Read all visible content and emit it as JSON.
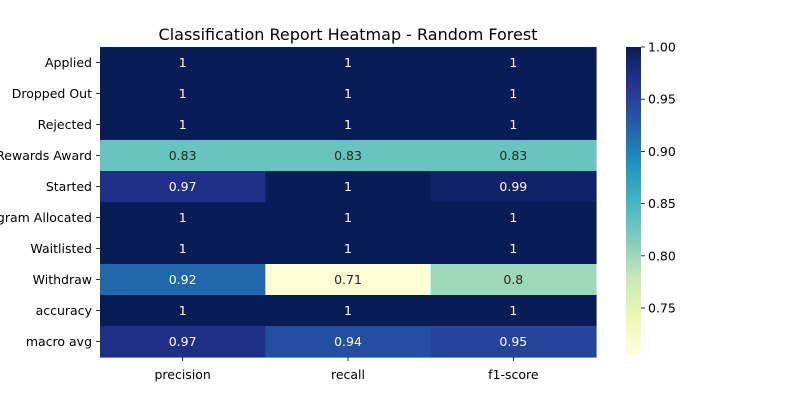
{
  "chart_data": {
    "type": "heatmap",
    "title": "Classification Report Heatmap - Random Forest",
    "rows": [
      "Applied",
      "Dropped Out",
      "Rejected",
      "Rewards Award",
      "Started",
      "Program Allocated",
      "Waitlisted",
      "Withdraw",
      "accuracy",
      "macro avg"
    ],
    "columns": [
      "precision",
      "recall",
      "f1-score"
    ],
    "values": [
      [
        1,
        1,
        1
      ],
      [
        1,
        1,
        1
      ],
      [
        1,
        1,
        1
      ],
      [
        0.83,
        0.83,
        0.83
      ],
      [
        0.97,
        1,
        0.99
      ],
      [
        1,
        1,
        1
      ],
      [
        1,
        1,
        1
      ],
      [
        0.92,
        0.71,
        0.8
      ],
      [
        1,
        1,
        1
      ],
      [
        0.97,
        0.94,
        0.95
      ]
    ],
    "labels": [
      [
        "1",
        "1",
        "1"
      ],
      [
        "1",
        "1",
        "1"
      ],
      [
        "1",
        "1",
        "1"
      ],
      [
        "0.83",
        "0.83",
        "0.83"
      ],
      [
        "0.97",
        "1",
        "0.99"
      ],
      [
        "1",
        "1",
        "1"
      ],
      [
        "1",
        "1",
        "1"
      ],
      [
        "0.92",
        "0.71",
        "0.8"
      ],
      [
        "1",
        "1",
        "1"
      ],
      [
        "0.97",
        "0.94",
        "0.95"
      ]
    ],
    "colormap": "YlGnBu",
    "vmin": 0.705,
    "vmax": 1.0,
    "colorbar_ticks": [
      1.0,
      0.95,
      0.9,
      0.85,
      0.8,
      0.75
    ],
    "colorbar_tick_labels": [
      "1.00",
      "0.95",
      "0.90",
      "0.85",
      "0.80",
      "0.75"
    ],
    "colorbar": "right"
  }
}
